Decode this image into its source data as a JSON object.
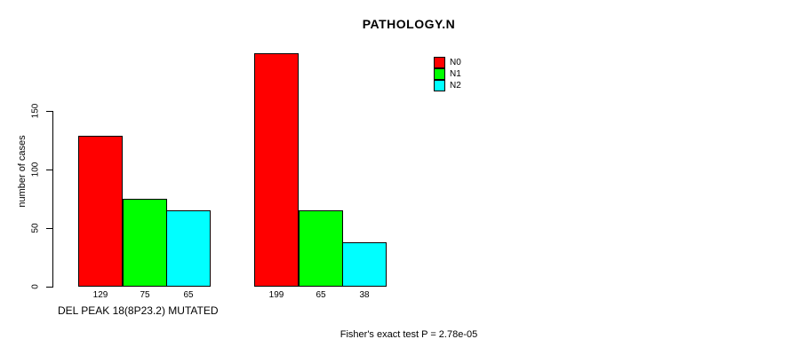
{
  "chart_data": {
    "type": "bar",
    "title": "PATHOLOGY.N",
    "ylabel": "number of cases",
    "xlabel": "DEL PEAK 18(8P23.2) MUTATED",
    "footnote": "Fisher's exact test P = 2.78e-05",
    "ylim": [
      0,
      150
    ],
    "yticks": [
      0,
      50,
      100,
      150
    ],
    "grid": false,
    "legend_position": "top-right",
    "axis_color": "#000000",
    "series": [
      {
        "name": "N0",
        "color": "#ff0000",
        "values": [
          129,
          199
        ]
      },
      {
        "name": "N1",
        "color": "#00ff00",
        "values": [
          75,
          65
        ]
      },
      {
        "name": "N2",
        "color": "#00ffff",
        "values": [
          65,
          38
        ]
      }
    ],
    "value_labels": [
      [
        129,
        75,
        65
      ],
      [
        199,
        65,
        38
      ]
    ],
    "show_value_labels": true
  }
}
